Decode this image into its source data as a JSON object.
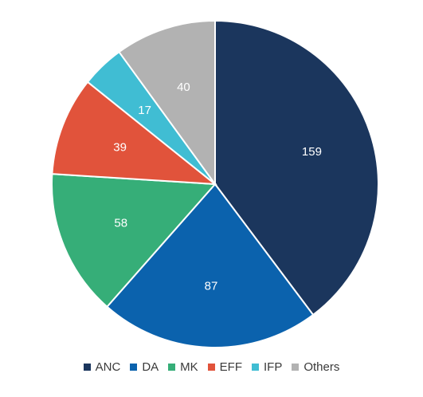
{
  "chart_data": {
    "type": "pie",
    "title": "",
    "categories": [
      "ANC",
      "DA",
      "MK",
      "EFF",
      "IFP",
      "Others"
    ],
    "values": [
      159,
      87,
      58,
      39,
      17,
      40
    ],
    "colors": [
      "#1b365d",
      "#0b62ad",
      "#36ae78",
      "#e1533b",
      "#40bdd3",
      "#b2b2b2"
    ],
    "start_angle_deg": 0,
    "direction": "clockwise",
    "legend_position": "bottom"
  }
}
